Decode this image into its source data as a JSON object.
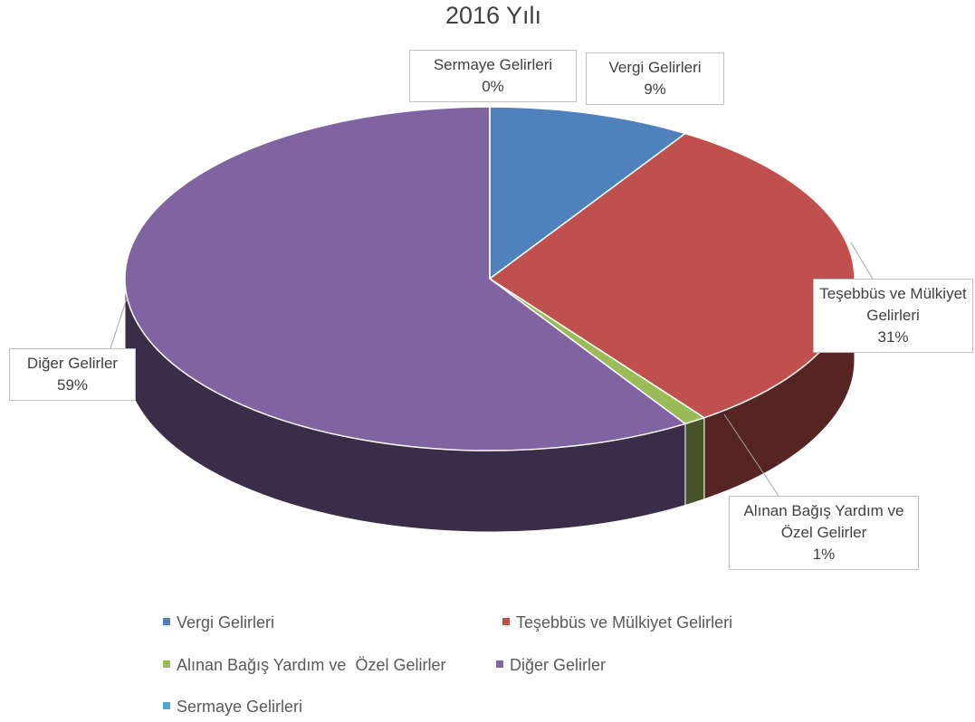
{
  "chart_data": {
    "type": "pie",
    "title": "2016 Yılı",
    "categories": [
      "Vergi Gelirleri",
      "Teşebbüs ve Mülkiyet Gelirleri",
      "Alınan Bağış Yardım ve  Özel Gelirler",
      "Diğer Gelirler",
      "Sermaye Gelirleri"
    ],
    "values": [
      9,
      31,
      1,
      59,
      0
    ],
    "value_labels": [
      "9%",
      "31%",
      "1%",
      "59%",
      "0%"
    ],
    "colors": [
      "#4f81bd",
      "#c0504d",
      "#9bbb59",
      "#8064a2",
      "#4bacc6"
    ],
    "legend": "bottom"
  }
}
